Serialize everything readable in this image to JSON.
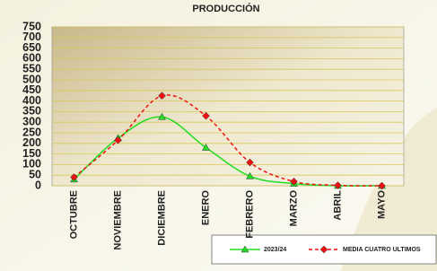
{
  "chart_data": {
    "type": "line",
    "title": "PRODUCCIÓN",
    "categories": [
      "OCTUBRE",
      "NOVIEMBRE",
      "DICIEMBRE",
      "ENERO",
      "FEBRERO",
      "MARZO",
      "ABRIL",
      "MAYO"
    ],
    "series": [
      {
        "name": "2023/24",
        "color": "#22dd22",
        "values": [
          30,
          225,
          325,
          180,
          45,
          10,
          0,
          0
        ]
      },
      {
        "name": "MEDIA CUATRO ULTIMOS",
        "color": "#ee1111",
        "values": [
          40,
          215,
          425,
          330,
          110,
          20,
          2,
          0
        ]
      }
    ],
    "ylim": [
      0,
      750
    ],
    "yticks": [
      0,
      50,
      100,
      150,
      200,
      250,
      300,
      350,
      400,
      450,
      500,
      550,
      600,
      650,
      700,
      750
    ],
    "grid": true
  }
}
